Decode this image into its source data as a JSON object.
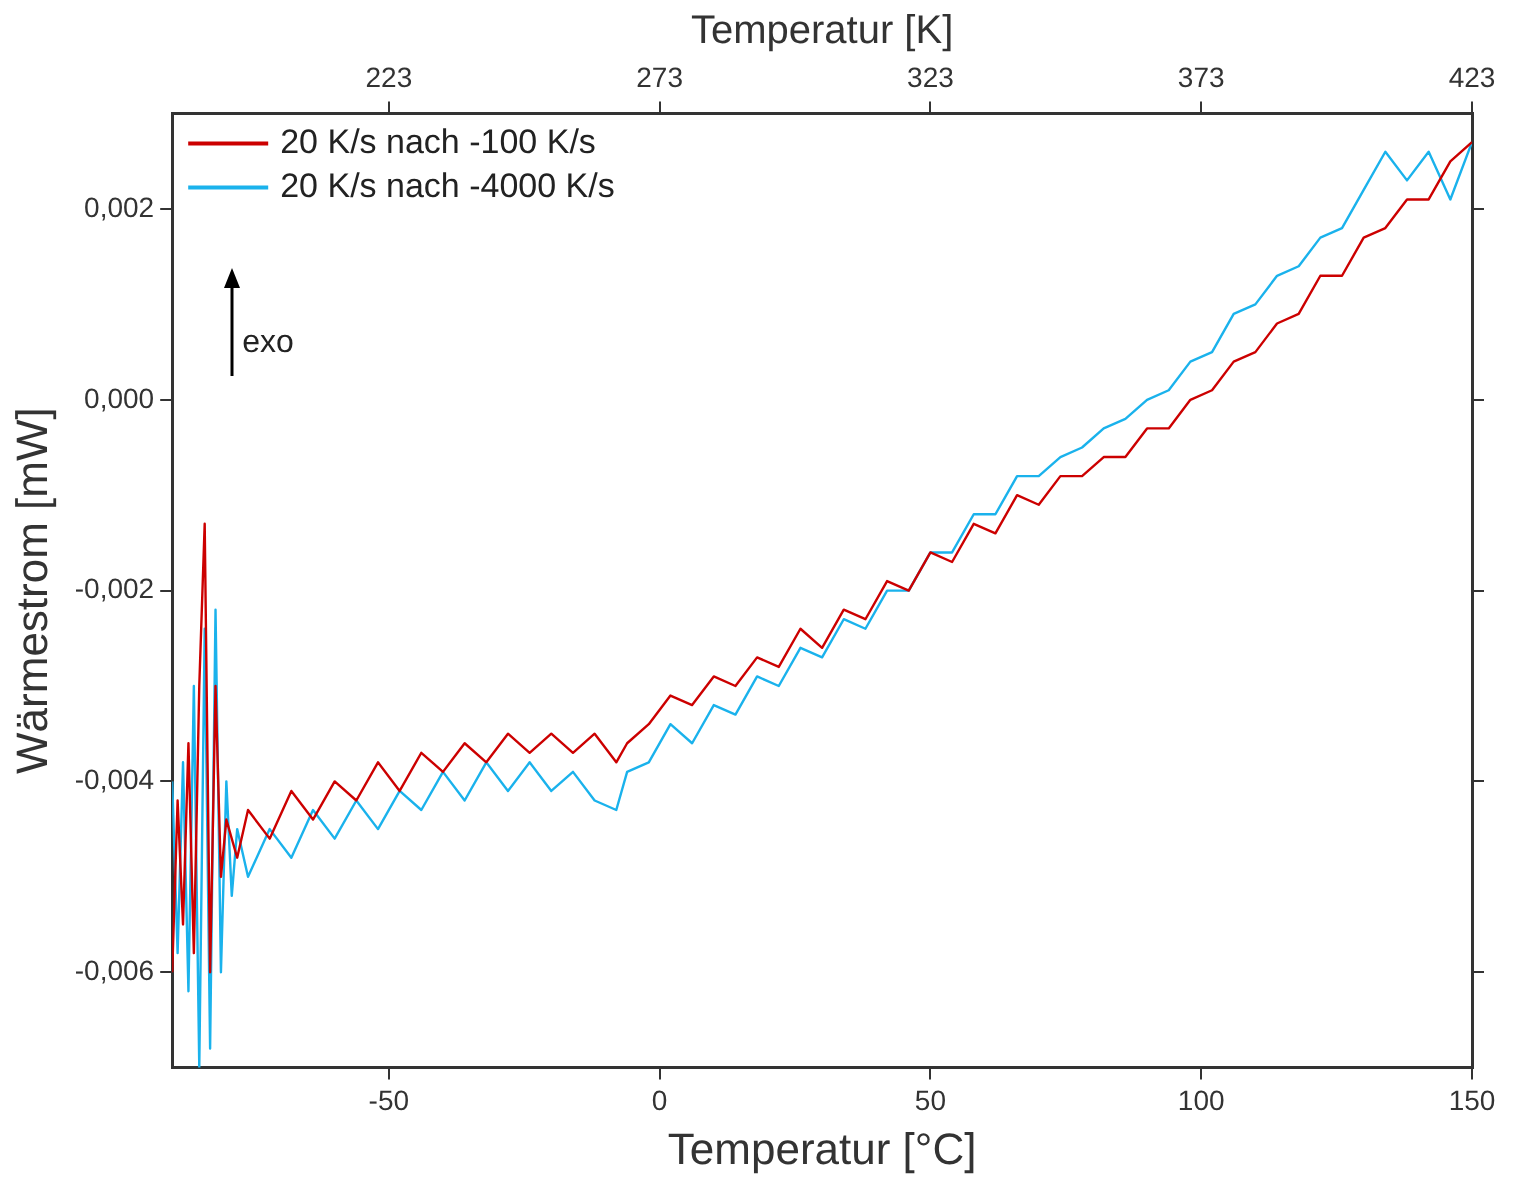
{
  "chart_data": {
    "type": "line",
    "xlabel": "Temperatur [°C]",
    "x2label": "Temperatur [K]",
    "ylabel": "Wärmestrom [mW]",
    "xlim": [
      -90,
      150
    ],
    "xticks": [
      -50,
      0,
      50,
      100,
      150
    ],
    "x2lim": [
      183,
      423
    ],
    "x2ticks": [
      223,
      273,
      323,
      373,
      423
    ],
    "ylim": [
      -0.007,
      0.003
    ],
    "yticks": [
      {
        "value": -0.006,
        "label": "-0,006"
      },
      {
        "value": -0.004,
        "label": "-0,004"
      },
      {
        "value": -0.002,
        "label": "-0,002"
      },
      {
        "value": 0,
        "label": "0,000"
      },
      {
        "value": 0.002,
        "label": "0,002"
      }
    ],
    "grid": false,
    "legend": "top left",
    "marker": "none",
    "line_style": "solid",
    "annotations": [
      "exo"
    ],
    "series": [
      {
        "name": "20 K/s nach -100 K/s",
        "color": "#cc0000",
        "x": [
          -90,
          -89,
          -88,
          -87,
          -86,
          -85,
          -84,
          -83,
          -82,
          -81,
          -80,
          -78,
          -76,
          -72,
          -68,
          -64,
          -60,
          -56,
          -52,
          -48,
          -44,
          -40,
          -36,
          -32,
          -28,
          -24,
          -20,
          -16,
          -12,
          -8,
          -6,
          -2,
          2,
          6,
          10,
          14,
          18,
          22,
          26,
          30,
          34,
          38,
          42,
          46,
          50,
          54,
          58,
          62,
          66,
          70,
          74,
          78,
          82,
          86,
          90,
          94,
          98,
          102,
          106,
          110,
          114,
          118,
          122,
          126,
          130,
          134,
          138,
          142,
          146,
          150
        ],
        "values": [
          -0.006,
          -0.0042,
          -0.0055,
          -0.0036,
          -0.0058,
          -0.003,
          -0.0013,
          -0.006,
          -0.003,
          -0.005,
          -0.0044,
          -0.0048,
          -0.0043,
          -0.0046,
          -0.0041,
          -0.0044,
          -0.004,
          -0.0042,
          -0.0038,
          -0.0041,
          -0.0037,
          -0.0039,
          -0.0036,
          -0.0038,
          -0.0035,
          -0.0037,
          -0.0035,
          -0.0037,
          -0.0035,
          -0.0038,
          -0.0036,
          -0.0034,
          -0.0031,
          -0.0032,
          -0.0029,
          -0.003,
          -0.0027,
          -0.0028,
          -0.0024,
          -0.0026,
          -0.0022,
          -0.0023,
          -0.0019,
          -0.002,
          -0.0016,
          -0.0017,
          -0.0013,
          -0.0014,
          -0.001,
          -0.0011,
          -0.0008,
          -0.0008,
          -0.0006,
          -0.0006,
          -0.0003,
          -0.0003,
          0.0,
          0.0001,
          0.0004,
          0.0005,
          0.0008,
          0.0009,
          0.0013,
          0.0013,
          0.0017,
          0.0018,
          0.0021,
          0.0021,
          0.0025,
          0.0027
        ]
      },
      {
        "name": "20 K/s nach -4000 K/s",
        "color": "#1ab2ec",
        "x": [
          -90,
          -89,
          -88,
          -87,
          -86,
          -85,
          -84,
          -83,
          -82,
          -81,
          -80,
          -79,
          -78,
          -76,
          -72,
          -68,
          -64,
          -60,
          -56,
          -52,
          -48,
          -44,
          -40,
          -36,
          -32,
          -28,
          -24,
          -20,
          -16,
          -12,
          -8,
          -6,
          -2,
          2,
          6,
          10,
          14,
          18,
          22,
          26,
          30,
          34,
          38,
          42,
          46,
          50,
          54,
          58,
          62,
          66,
          70,
          74,
          78,
          82,
          86,
          90,
          94,
          98,
          102,
          106,
          110,
          114,
          118,
          122,
          126,
          130,
          134,
          138,
          142,
          146,
          150
        ],
        "values": [
          -0.004,
          -0.0058,
          -0.0038,
          -0.0062,
          -0.003,
          -0.007,
          -0.0024,
          -0.0068,
          -0.0022,
          -0.006,
          -0.004,
          -0.0052,
          -0.0045,
          -0.005,
          -0.0045,
          -0.0048,
          -0.0043,
          -0.0046,
          -0.0042,
          -0.0045,
          -0.0041,
          -0.0043,
          -0.0039,
          -0.0042,
          -0.0038,
          -0.0041,
          -0.0038,
          -0.0041,
          -0.0039,
          -0.0042,
          -0.0043,
          -0.0039,
          -0.0038,
          -0.0034,
          -0.0036,
          -0.0032,
          -0.0033,
          -0.0029,
          -0.003,
          -0.0026,
          -0.0027,
          -0.0023,
          -0.0024,
          -0.002,
          -0.002,
          -0.0016,
          -0.0016,
          -0.0012,
          -0.0012,
          -0.0008,
          -0.0008,
          -0.0006,
          -0.0005,
          -0.0003,
          -0.0002,
          0.0,
          0.0001,
          0.0004,
          0.0005,
          0.0009,
          0.001,
          0.0013,
          0.0014,
          0.0017,
          0.0018,
          0.0022,
          0.0026,
          0.0023,
          0.0026,
          0.0021,
          0.0027
        ]
      }
    ]
  }
}
